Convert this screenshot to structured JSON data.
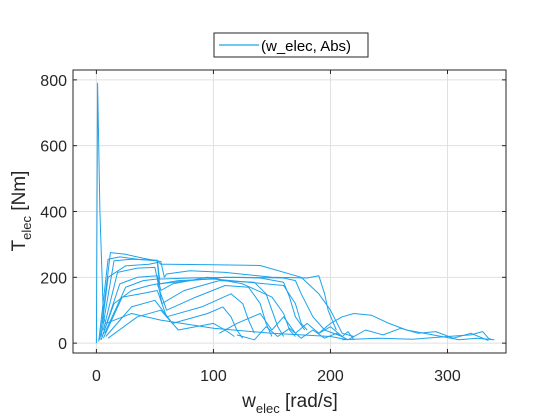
{
  "chart_data": {
    "type": "line",
    "xlabel_main": "w",
    "xlabel_sub": "elec",
    "xlabel_unit": "[rad/s]",
    "ylabel_main": "T",
    "ylabel_sub": "elec",
    "ylabel_unit": "[Nm]",
    "xlim": [
      -20,
      350
    ],
    "ylim": [
      -30,
      830
    ],
    "xticks": [
      0,
      100,
      200,
      300
    ],
    "yticks": [
      0,
      200,
      400,
      600,
      800
    ],
    "grid": true,
    "legend_position": "top",
    "line_color": "#1ca3ec",
    "series": [
      {
        "name": "(w_elec, Abs)",
        "segments": [
          [
            [
              0,
              0
            ],
            [
              1,
              790
            ],
            [
              3,
              400
            ],
            [
              6,
              80
            ],
            [
              8,
              60
            ],
            [
              12,
              65
            ],
            [
              30,
              90
            ],
            [
              55,
              70
            ],
            [
              100,
              45
            ],
            [
              150,
              30
            ],
            [
              200,
              20
            ],
            [
              215,
              10
            ]
          ],
          [
            [
              2,
              5
            ],
            [
              10,
              255
            ],
            [
              20,
              262
            ],
            [
              35,
              255
            ],
            [
              52,
              250
            ],
            [
              55,
              240
            ],
            [
              60,
              240
            ],
            [
              100,
              238
            ],
            [
              140,
              236
            ],
            [
              175,
              200
            ],
            [
              190,
              150
            ],
            [
              200,
              100
            ],
            [
              210,
              30
            ],
            [
              220,
              20
            ]
          ],
          [
            [
              3,
              10
            ],
            [
              12,
              275
            ],
            [
              25,
              270
            ],
            [
              40,
              258
            ],
            [
              55,
              248
            ],
            [
              58,
              200
            ],
            [
              60,
              210
            ],
            [
              80,
              220
            ],
            [
              110,
              215
            ],
            [
              150,
              200
            ],
            [
              180,
              198
            ],
            [
              190,
              205
            ],
            [
              195,
              150
            ],
            [
              198,
              100
            ],
            [
              205,
              40
            ]
          ],
          [
            [
              4,
              20
            ],
            [
              15,
              250
            ],
            [
              30,
              255
            ],
            [
              52,
              252
            ],
            [
              54,
              195
            ],
            [
              56,
              195
            ],
            [
              80,
              198
            ],
            [
              120,
              200
            ],
            [
              160,
              198
            ],
            [
              170,
              190
            ],
            [
              175,
              150
            ],
            [
              185,
              80
            ],
            [
              195,
              40
            ],
            [
              210,
              20
            ]
          ],
          [
            [
              5,
              60
            ],
            [
              10,
              200
            ],
            [
              25,
              235
            ],
            [
              45,
              240
            ],
            [
              52,
              245
            ],
            [
              54,
              180
            ],
            [
              70,
              190
            ],
            [
              100,
              195
            ],
            [
              130,
              185
            ],
            [
              160,
              175
            ],
            [
              170,
              120
            ],
            [
              175,
              60
            ],
            [
              180,
              40
            ]
          ],
          [
            [
              6,
              40
            ],
            [
              18,
              215
            ],
            [
              35,
              228
            ],
            [
              50,
              230
            ],
            [
              53,
              180
            ],
            [
              80,
              190
            ],
            [
              110,
              200
            ],
            [
              140,
              198
            ],
            [
              160,
              185
            ],
            [
              165,
              140
            ],
            [
              170,
              80
            ],
            [
              178,
              40
            ]
          ],
          [
            [
              5,
              20
            ],
            [
              20,
              180
            ],
            [
              35,
              200
            ],
            [
              52,
              205
            ],
            [
              55,
              160
            ],
            [
              65,
              180
            ],
            [
              95,
              200
            ],
            [
              125,
              180
            ],
            [
              150,
              140
            ],
            [
              160,
              90
            ],
            [
              165,
              40
            ],
            [
              170,
              20
            ]
          ],
          [
            [
              7,
              30
            ],
            [
              25,
              170
            ],
            [
              40,
              190
            ],
            [
              52,
              195
            ],
            [
              56,
              120
            ],
            [
              75,
              160
            ],
            [
              105,
              190
            ],
            [
              135,
              185
            ],
            [
              145,
              150
            ],
            [
              150,
              100
            ],
            [
              155,
              50
            ],
            [
              160,
              20
            ]
          ],
          [
            [
              4,
              10
            ],
            [
              15,
              120
            ],
            [
              30,
              160
            ],
            [
              45,
              175
            ],
            [
              52,
              180
            ],
            [
              60,
              100
            ],
            [
              85,
              140
            ],
            [
              110,
              175
            ],
            [
              130,
              170
            ],
            [
              140,
              120
            ],
            [
              145,
              60
            ],
            [
              150,
              20
            ]
          ],
          [
            [
              6,
              15
            ],
            [
              22,
              140
            ],
            [
              38,
              150
            ],
            [
              52,
              160
            ],
            [
              60,
              80
            ],
            [
              90,
              110
            ],
            [
              115,
              150
            ],
            [
              125,
              120
            ],
            [
              130,
              70
            ],
            [
              135,
              30
            ]
          ],
          [
            [
              8,
              20
            ],
            [
              30,
              110
            ],
            [
              50,
              130
            ],
            [
              65,
              60
            ],
            [
              95,
              90
            ],
            [
              108,
              110
            ],
            [
              115,
              80
            ],
            [
              120,
              40
            ],
            [
              125,
              15
            ]
          ],
          [
            [
              10,
              15
            ],
            [
              35,
              80
            ],
            [
              55,
              100
            ],
            [
              70,
              40
            ],
            [
              100,
              60
            ],
            [
              110,
              40
            ],
            [
              118,
              20
            ]
          ],
          [
            [
              105,
              30
            ],
            [
              120,
              60
            ],
            [
              140,
              90
            ],
            [
              150,
              40
            ],
            [
              160,
              80
            ],
            [
              170,
              30
            ],
            [
              180,
              60
            ],
            [
              190,
              30
            ],
            [
              200,
              50
            ],
            [
              210,
              20
            ],
            [
              215,
              35
            ],
            [
              220,
              10
            ]
          ],
          [
            [
              120,
              25
            ],
            [
              135,
              10
            ],
            [
              145,
              50
            ],
            [
              155,
              20
            ],
            [
              165,
              45
            ],
            [
              175,
              15
            ],
            [
              185,
              40
            ],
            [
              195,
              15
            ],
            [
              205,
              30
            ],
            [
              215,
              10
            ]
          ],
          [
            [
              190,
              30
            ],
            [
              200,
              60
            ],
            [
              210,
              80
            ],
            [
              220,
              90
            ],
            [
              235,
              85
            ],
            [
              250,
              60
            ],
            [
              265,
              40
            ],
            [
              280,
              30
            ],
            [
              295,
              20
            ],
            [
              310,
              10
            ],
            [
              325,
              15
            ],
            [
              340,
              10
            ]
          ],
          [
            [
              215,
              10
            ],
            [
              230,
              40
            ],
            [
              245,
              25
            ],
            [
              260,
              45
            ],
            [
              275,
              30
            ],
            [
              290,
              35
            ],
            [
              305,
              15
            ],
            [
              320,
              30
            ],
            [
              335,
              8
            ]
          ],
          [
            [
              210,
              10
            ],
            [
              240,
              15
            ],
            [
              270,
              12
            ],
            [
              300,
              20
            ],
            [
              320,
              25
            ],
            [
              330,
              35
            ],
            [
              335,
              15
            ],
            [
              338,
              10
            ]
          ]
        ]
      }
    ]
  }
}
